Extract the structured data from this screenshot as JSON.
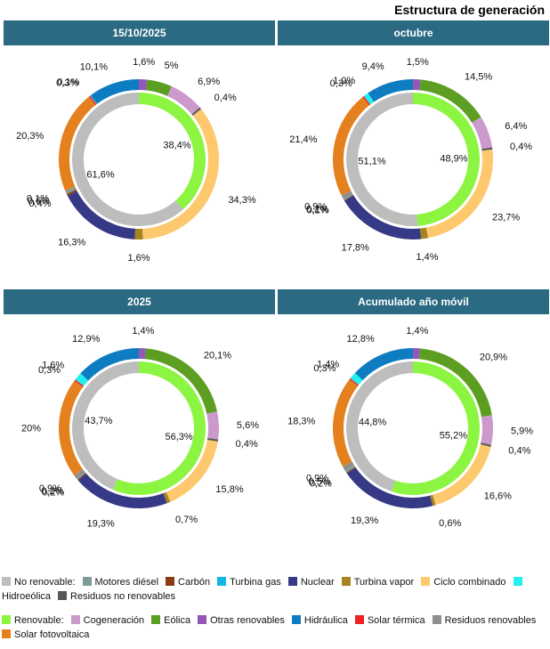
{
  "page_title": "Estructura de generación",
  "colors": {
    "nonrenewable_total": "#bdbdbd",
    "renewable_total": "#8cf542",
    "Motores diésel": "#7d9c98",
    "Carbón": "#8a3b12",
    "Turbina gas": "#13b6e6",
    "Nuclear": "#363985",
    "Turbina vapor": "#a6841f",
    "Ciclo combinado": "#fdc86e",
    "Hidroeólica": "#21f0ee",
    "Residuos no renovables": "#575757",
    "Cogeneración": "#cc99cc",
    "Eólica": "#5c9e21",
    "Otras renovables": "#9457b8",
    "Hidráulica": "#0d7cc1",
    "Solar térmica": "#ee2222",
    "Residuos renovables": "#8f8f8f",
    "Solar fotovoltaica": "#e5801f"
  },
  "legend": {
    "nonrenewable": [
      {
        "label": "No renovable:",
        "key": "nonrenewable_total"
      },
      {
        "label": "Motores diésel",
        "key": "Motores diésel"
      },
      {
        "label": "Carbón",
        "key": "Carbón"
      },
      {
        "label": "Turbina gas",
        "key": "Turbina gas"
      },
      {
        "label": "Nuclear",
        "key": "Nuclear"
      },
      {
        "label": "Turbina vapor",
        "key": "Turbina vapor"
      },
      {
        "label": "Ciclo combinado",
        "key": "Ciclo combinado"
      },
      {
        "label": "Hidroeólica",
        "key": "Hidroeólica"
      },
      {
        "label": "Residuos no renovables",
        "key": "Residuos no renovables"
      }
    ],
    "renewable": [
      {
        "label": "Renovable:",
        "key": "renewable_total"
      },
      {
        "label": "Cogeneración",
        "key": "Cogeneración"
      },
      {
        "label": "Eólica",
        "key": "Eólica"
      },
      {
        "label": "Otras renovables",
        "key": "Otras renovables"
      },
      {
        "label": "Hidráulica",
        "key": "Hidráulica"
      },
      {
        "label": "Solar térmica",
        "key": "Solar térmica"
      },
      {
        "label": "Residuos renovables",
        "key": "Residuos renovables"
      },
      {
        "label": "Solar fotovoltaica",
        "key": "Solar fotovoltaica"
      }
    ]
  },
  "chart_data": [
    {
      "type": "pie",
      "title": "15/10/2025",
      "inner": [
        {
          "name": "Renovable",
          "value": 38.4,
          "label": "38,4%"
        },
        {
          "name": "No renovable",
          "value": 61.6,
          "label": "61,6%"
        }
      ],
      "outer": [
        {
          "name": "Otras renovables",
          "value": 1.6,
          "label": "1,6%"
        },
        {
          "name": "Eólica",
          "value": 5.0,
          "label": "5%"
        },
        {
          "name": "Cogeneración",
          "value": 6.9,
          "label": "6,9%"
        },
        {
          "name": "Residuos no renovables",
          "value": 0.4,
          "label": "0,4%"
        },
        {
          "name": "Ciclo combinado",
          "value": 34.3,
          "label": "34,3%"
        },
        {
          "name": "Turbina vapor",
          "value": 1.6,
          "label": "1,6%"
        },
        {
          "name": "Nuclear",
          "value": 16.3,
          "label": "16,3%"
        },
        {
          "name": "Carbón",
          "value": 0.4,
          "label": "0,4%"
        },
        {
          "name": "Motores diésel",
          "value": 0.6,
          "label": "0,6%"
        },
        {
          "name": "Residuos renovables",
          "value": 0.1,
          "label": "0,1%"
        },
        {
          "name": "Solar fotovoltaica",
          "value": 20.3,
          "label": "20,3%"
        },
        {
          "name": "Solar térmica",
          "value": 0.3,
          "label": "0,3%"
        },
        {
          "name": "Hidroeólica",
          "value": 0.1,
          "label": "0,1%"
        },
        {
          "name": "Hidráulica",
          "value": 10.1,
          "label": "10,1%"
        }
      ]
    },
    {
      "type": "pie",
      "title": "octubre",
      "inner": [
        {
          "name": "Renovable",
          "value": 48.9,
          "label": "48,9%"
        },
        {
          "name": "No renovable",
          "value": 51.1,
          "label": "51,1%"
        }
      ],
      "outer": [
        {
          "name": "Otras renovables",
          "value": 1.5,
          "label": "1,5%"
        },
        {
          "name": "Eólica",
          "value": 14.5,
          "label": "14,5%"
        },
        {
          "name": "Cogeneración",
          "value": 6.4,
          "label": "6,4%"
        },
        {
          "name": "Residuos no renovables",
          "value": 0.4,
          "label": "0,4%"
        },
        {
          "name": "Ciclo combinado",
          "value": 23.7,
          "label": "23,7%"
        },
        {
          "name": "Turbina vapor",
          "value": 1.4,
          "label": "1,4%"
        },
        {
          "name": "Nuclear",
          "value": 17.8,
          "label": "17,8%"
        },
        {
          "name": "Carbón",
          "value": 0.1,
          "label": "0,1%"
        },
        {
          "name": "Motores diésel",
          "value": 0.2,
          "label": "0,2%"
        },
        {
          "name": "Residuos renovables",
          "value": 0.9,
          "label": "0,9%"
        },
        {
          "name": "Solar fotovoltaica",
          "value": 21.4,
          "label": "21,4%"
        },
        {
          "name": "Solar térmica",
          "value": 0.3,
          "label": "0,3%"
        },
        {
          "name": "Hidroeólica",
          "value": 1.0,
          "label": "1,0%"
        },
        {
          "name": "Hidráulica",
          "value": 9.4,
          "label": "9,4%"
        }
      ]
    },
    {
      "type": "pie",
      "title": "2025",
      "inner": [
        {
          "name": "Renovable",
          "value": 56.3,
          "label": "56,3%"
        },
        {
          "name": "No renovable",
          "value": 43.7,
          "label": "43,7%"
        }
      ],
      "outer": [
        {
          "name": "Otras renovables",
          "value": 1.4,
          "label": "1,4%"
        },
        {
          "name": "Eólica",
          "value": 20.1,
          "label": "20,1%"
        },
        {
          "name": "Cogeneración",
          "value": 5.6,
          "label": "5,6%"
        },
        {
          "name": "Residuos no renovables",
          "value": 0.4,
          "label": "0,4%"
        },
        {
          "name": "Ciclo combinado",
          "value": 15.8,
          "label": "15,8%"
        },
        {
          "name": "Turbina vapor",
          "value": 0.7,
          "label": "0,7%"
        },
        {
          "name": "Nuclear",
          "value": 19.3,
          "label": "19,3%"
        },
        {
          "name": "Carbón",
          "value": 0.2,
          "label": "0,2%"
        },
        {
          "name": "Motores diésel",
          "value": 0.2,
          "label": "0,2%"
        },
        {
          "name": "Residuos renovables",
          "value": 0.9,
          "label": "0,9%"
        },
        {
          "name": "Solar fotovoltaica",
          "value": 20.0,
          "label": "20%"
        },
        {
          "name": "Solar térmica",
          "value": 0.3,
          "label": "0,3%"
        },
        {
          "name": "Hidroeólica",
          "value": 1.6,
          "label": "1,6%"
        },
        {
          "name": "Hidráulica",
          "value": 12.9,
          "label": "12,9%"
        }
      ]
    },
    {
      "type": "pie",
      "title": "Acumulado año móvil",
      "inner": [
        {
          "name": "Renovable",
          "value": 55.2,
          "label": "55,2%"
        },
        {
          "name": "No renovable",
          "value": 44.8,
          "label": "44,8%"
        }
      ],
      "outer": [
        {
          "name": "Otras renovables",
          "value": 1.4,
          "label": "1,4%"
        },
        {
          "name": "Eólica",
          "value": 20.9,
          "label": "20,9%"
        },
        {
          "name": "Cogeneración",
          "value": 5.9,
          "label": "5,9%"
        },
        {
          "name": "Residuos no renovables",
          "value": 0.4,
          "label": "0,4%"
        },
        {
          "name": "Ciclo combinado",
          "value": 16.6,
          "label": "16,6%"
        },
        {
          "name": "Turbina vapor",
          "value": 0.6,
          "label": "0,6%"
        },
        {
          "name": "Nuclear",
          "value": 19.3,
          "label": "19,3%"
        },
        {
          "name": "Carbón",
          "value": 0.2,
          "label": "0,2%"
        },
        {
          "name": "Motores diésel",
          "value": 0.5,
          "label": "0,5%"
        },
        {
          "name": "Residuos renovables",
          "value": 0.9,
          "label": "0,9%"
        },
        {
          "name": "Solar fotovoltaica",
          "value": 18.3,
          "label": "18,3%"
        },
        {
          "name": "Solar térmica",
          "value": 0.3,
          "label": "0,3%"
        },
        {
          "name": "Hidroeólica",
          "value": 1.4,
          "label": "1,4%"
        },
        {
          "name": "Hidráulica",
          "value": 12.8,
          "label": "12,8%"
        }
      ]
    }
  ]
}
